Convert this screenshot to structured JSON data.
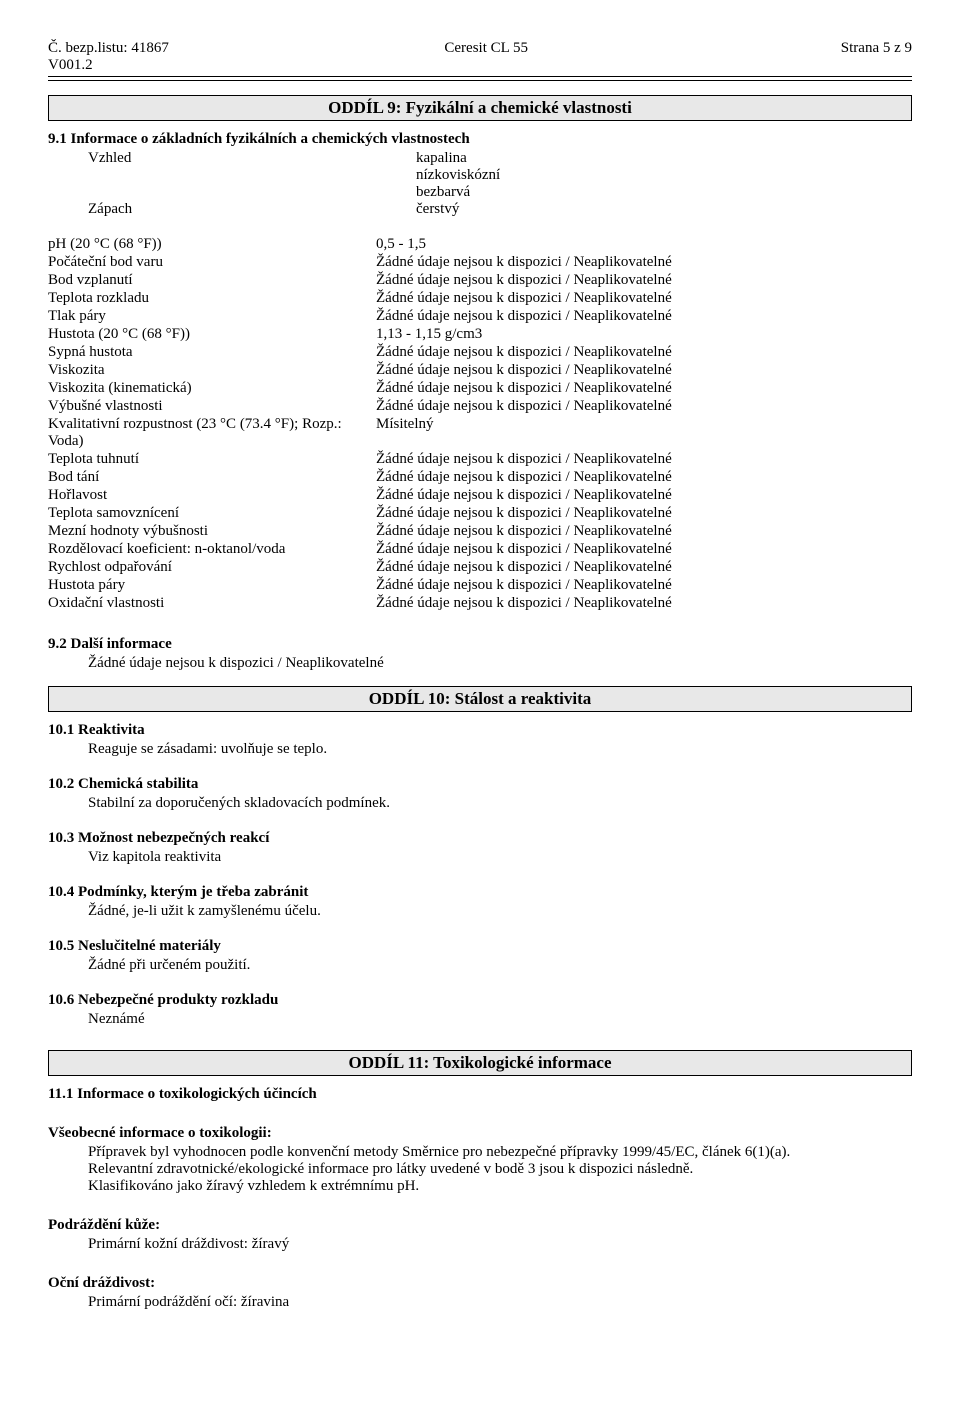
{
  "header": {
    "doc_no_label": "Č. bezp.listu:",
    "doc_no": "41867",
    "version": "V001.2",
    "product": "Ceresit CL 55",
    "page": "Strana 5 z 9"
  },
  "section9": {
    "title": "ODDÍL 9: Fyzikální a chemické vlastnosti",
    "sub1": "9.1 Informace o základních fyzikálních a chemických vlastnostech",
    "intro": [
      {
        "label": "Vzhled",
        "value": "kapalina"
      },
      {
        "label": "",
        "value": "nízkoviskózní"
      },
      {
        "label": "",
        "value": "bezbarvá"
      },
      {
        "label": "Zápach",
        "value": "čerstvý"
      }
    ],
    "props": [
      {
        "label": "pH (20 °C (68 °F))",
        "value": "0,5 - 1,5"
      },
      {
        "label": "Počáteční bod varu",
        "value": "Žádné údaje nejsou k dispozici / Neaplikovatelné"
      },
      {
        "label": "Bod vzplanutí",
        "value": "Žádné údaje nejsou k dispozici / Neaplikovatelné"
      },
      {
        "label": "Teplota rozkladu",
        "value": "Žádné údaje nejsou k dispozici / Neaplikovatelné"
      },
      {
        "label": "Tlak páry",
        "value": "Žádné údaje nejsou k dispozici / Neaplikovatelné"
      },
      {
        "label": "Hustota (20 °C (68 °F))",
        "value": "1,13 - 1,15 g/cm3"
      },
      {
        "label": "Sypná hustota",
        "value": "Žádné údaje nejsou k dispozici / Neaplikovatelné"
      },
      {
        "label": "Viskozita",
        "value": "Žádné údaje nejsou k dispozici / Neaplikovatelné"
      },
      {
        "label": "Viskozita (kinematická)",
        "value": "Žádné údaje nejsou k dispozici / Neaplikovatelné"
      },
      {
        "label": "Výbušné vlastnosti",
        "value": "Žádné údaje nejsou k dispozici / Neaplikovatelné"
      },
      {
        "label": "Kvalitativní rozpustnost (23 °C (73.4 °F); Rozp.: Voda)",
        "value": "Mísitelný"
      },
      {
        "label": "Teplota tuhnutí",
        "value": "Žádné údaje nejsou k dispozici / Neaplikovatelné"
      },
      {
        "label": "Bod tání",
        "value": "Žádné údaje nejsou k dispozici / Neaplikovatelné"
      },
      {
        "label": "Hořlavost",
        "value": "Žádné údaje nejsou k dispozici / Neaplikovatelné"
      },
      {
        "label": "Teplota samovznícení",
        "value": "Žádné údaje nejsou k dispozici / Neaplikovatelné"
      },
      {
        "label": "Mezní hodnoty výbušnosti",
        "value": "Žádné údaje nejsou k dispozici / Neaplikovatelné"
      },
      {
        "label": "Rozdělovací koeficient: n-oktanol/voda",
        "value": "Žádné údaje nejsou k dispozici / Neaplikovatelné"
      },
      {
        "label": "Rychlost odpařování",
        "value": "Žádné údaje nejsou k dispozici / Neaplikovatelné"
      },
      {
        "label": "Hustota páry",
        "value": "Žádné údaje nejsou k dispozici / Neaplikovatelné"
      },
      {
        "label": "Oxidační vlastnosti",
        "value": "Žádné údaje nejsou k dispozici / Neaplikovatelné"
      }
    ],
    "sub2": "9.2 Další informace",
    "sub2_text": "Žádné údaje nejsou k dispozici / Neaplikovatelné"
  },
  "section10": {
    "title": "ODDÍL 10: Stálost a reaktivita",
    "items": [
      {
        "head": "10.1 Reaktivita",
        "text": "Reaguje se zásadami: uvolňuje se teplo."
      },
      {
        "head": "10.2 Chemická stabilita",
        "text": "Stabilní za doporučených skladovacích podmínek."
      },
      {
        "head": "10.3 Možnost nebezpečných reakcí",
        "text": "Viz kapitola reaktivita"
      },
      {
        "head": "10.4 Podmínky, kterým je třeba zabránit",
        "text": "Žádné, je-li užit k zamyšlenému účelu."
      },
      {
        "head": "10.5 Neslučitelné materiály",
        "text": "Žádné při určeném použití."
      },
      {
        "head": "10.6 Nebezpečné produkty rozkladu",
        "text": "Neznámé"
      }
    ]
  },
  "section11": {
    "title": "ODDÍL 11: Toxikologické informace",
    "sub1": "11.1 Informace o toxikologických účincích",
    "tox_head": "Všeobecné informace o toxikologii:",
    "tox_lines": [
      "Přípravek byl vyhodnocen podle konvenční metody Směrnice pro nebezpečné přípravky 1999/45/EC, článek 6(1)(a).",
      "Relevantní zdravotnické/ekologické informace pro látky uvedené v bodě 3 jsou k dispozici následně.",
      "Klasifikováno jako žíravý vzhledem k extrémnímu pH."
    ],
    "skin_head": "Podráždění kůže:",
    "skin_text": "Primární kožní dráždivost: žíravý",
    "eye_head": "Oční dráždivost:",
    "eye_text": "Primární podráždění očí: žíravina"
  }
}
